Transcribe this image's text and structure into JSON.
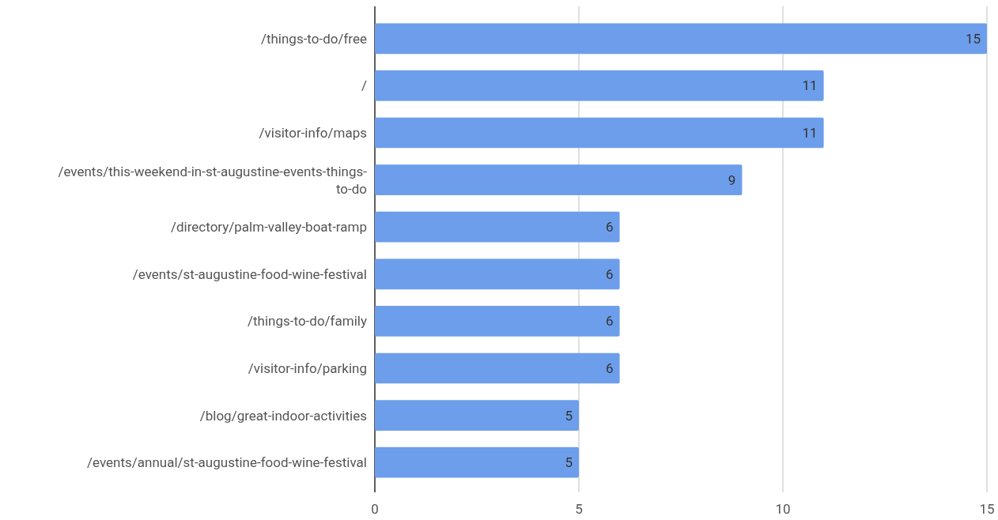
{
  "chart_data": {
    "type": "bar",
    "orientation": "horizontal",
    "categories": [
      "/things-to-do/free",
      "/",
      "/visitor-info/maps",
      "/events/this-weekend-in-st-augustine-events-things-to-do",
      "/directory/palm-valley-boat-ramp",
      "/events/st-augustine-food-wine-festival",
      "/things-to-do/family",
      "/visitor-info/parking",
      "/blog/great-indoor-activities",
      "/events/annual/st-augustine-food-wine-festival"
    ],
    "values": [
      15,
      11,
      11,
      9,
      6,
      6,
      6,
      6,
      5,
      5
    ],
    "color": "#6d9eeb",
    "xlim": [
      0,
      15
    ],
    "xticks": [
      0,
      5,
      10,
      15
    ],
    "grid": "x",
    "data_labels": true
  }
}
